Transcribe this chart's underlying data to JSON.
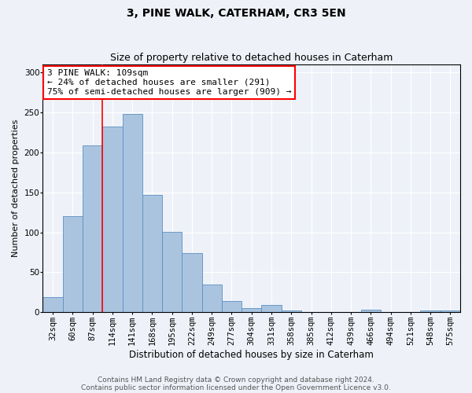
{
  "title1": "3, PINE WALK, CATERHAM, CR3 5EN",
  "title2": "Size of property relative to detached houses in Caterham",
  "xlabel": "Distribution of detached houses by size in Caterham",
  "ylabel": "Number of detached properties",
  "categories": [
    "32sqm",
    "60sqm",
    "87sqm",
    "114sqm",
    "141sqm",
    "168sqm",
    "195sqm",
    "222sqm",
    "249sqm",
    "277sqm",
    "304sqm",
    "331sqm",
    "358sqm",
    "385sqm",
    "412sqm",
    "439sqm",
    "466sqm",
    "494sqm",
    "521sqm",
    "548sqm",
    "575sqm"
  ],
  "values": [
    19,
    120,
    209,
    232,
    248,
    147,
    101,
    74,
    35,
    14,
    5,
    9,
    2,
    0,
    0,
    0,
    3,
    0,
    0,
    2,
    2
  ],
  "bar_color": "#aac4e0",
  "bar_edge_color": "#5a8fc0",
  "vline_x": 2.5,
  "property_line_label": "3 PINE WALK: 109sqm",
  "annotation_line1": "← 24% of detached houses are smaller (291)",
  "annotation_line2": "75% of semi-detached houses are larger (909) →",
  "annotation_box_color": "white",
  "annotation_box_edge_color": "red",
  "vline_color": "red",
  "ylim": [
    0,
    310
  ],
  "yticks": [
    0,
    50,
    100,
    150,
    200,
    250,
    300
  ],
  "footnote1": "Contains HM Land Registry data © Crown copyright and database right 2024.",
  "footnote2": "Contains public sector information licensed under the Open Government Licence v3.0.",
  "background_color": "#eef2f8",
  "grid_color": "#ffffff",
  "title1_fontsize": 10,
  "title2_fontsize": 9,
  "xlabel_fontsize": 8.5,
  "ylabel_fontsize": 8,
  "tick_fontsize": 7.5,
  "annotation_fontsize": 8,
  "footnote_fontsize": 6.5
}
